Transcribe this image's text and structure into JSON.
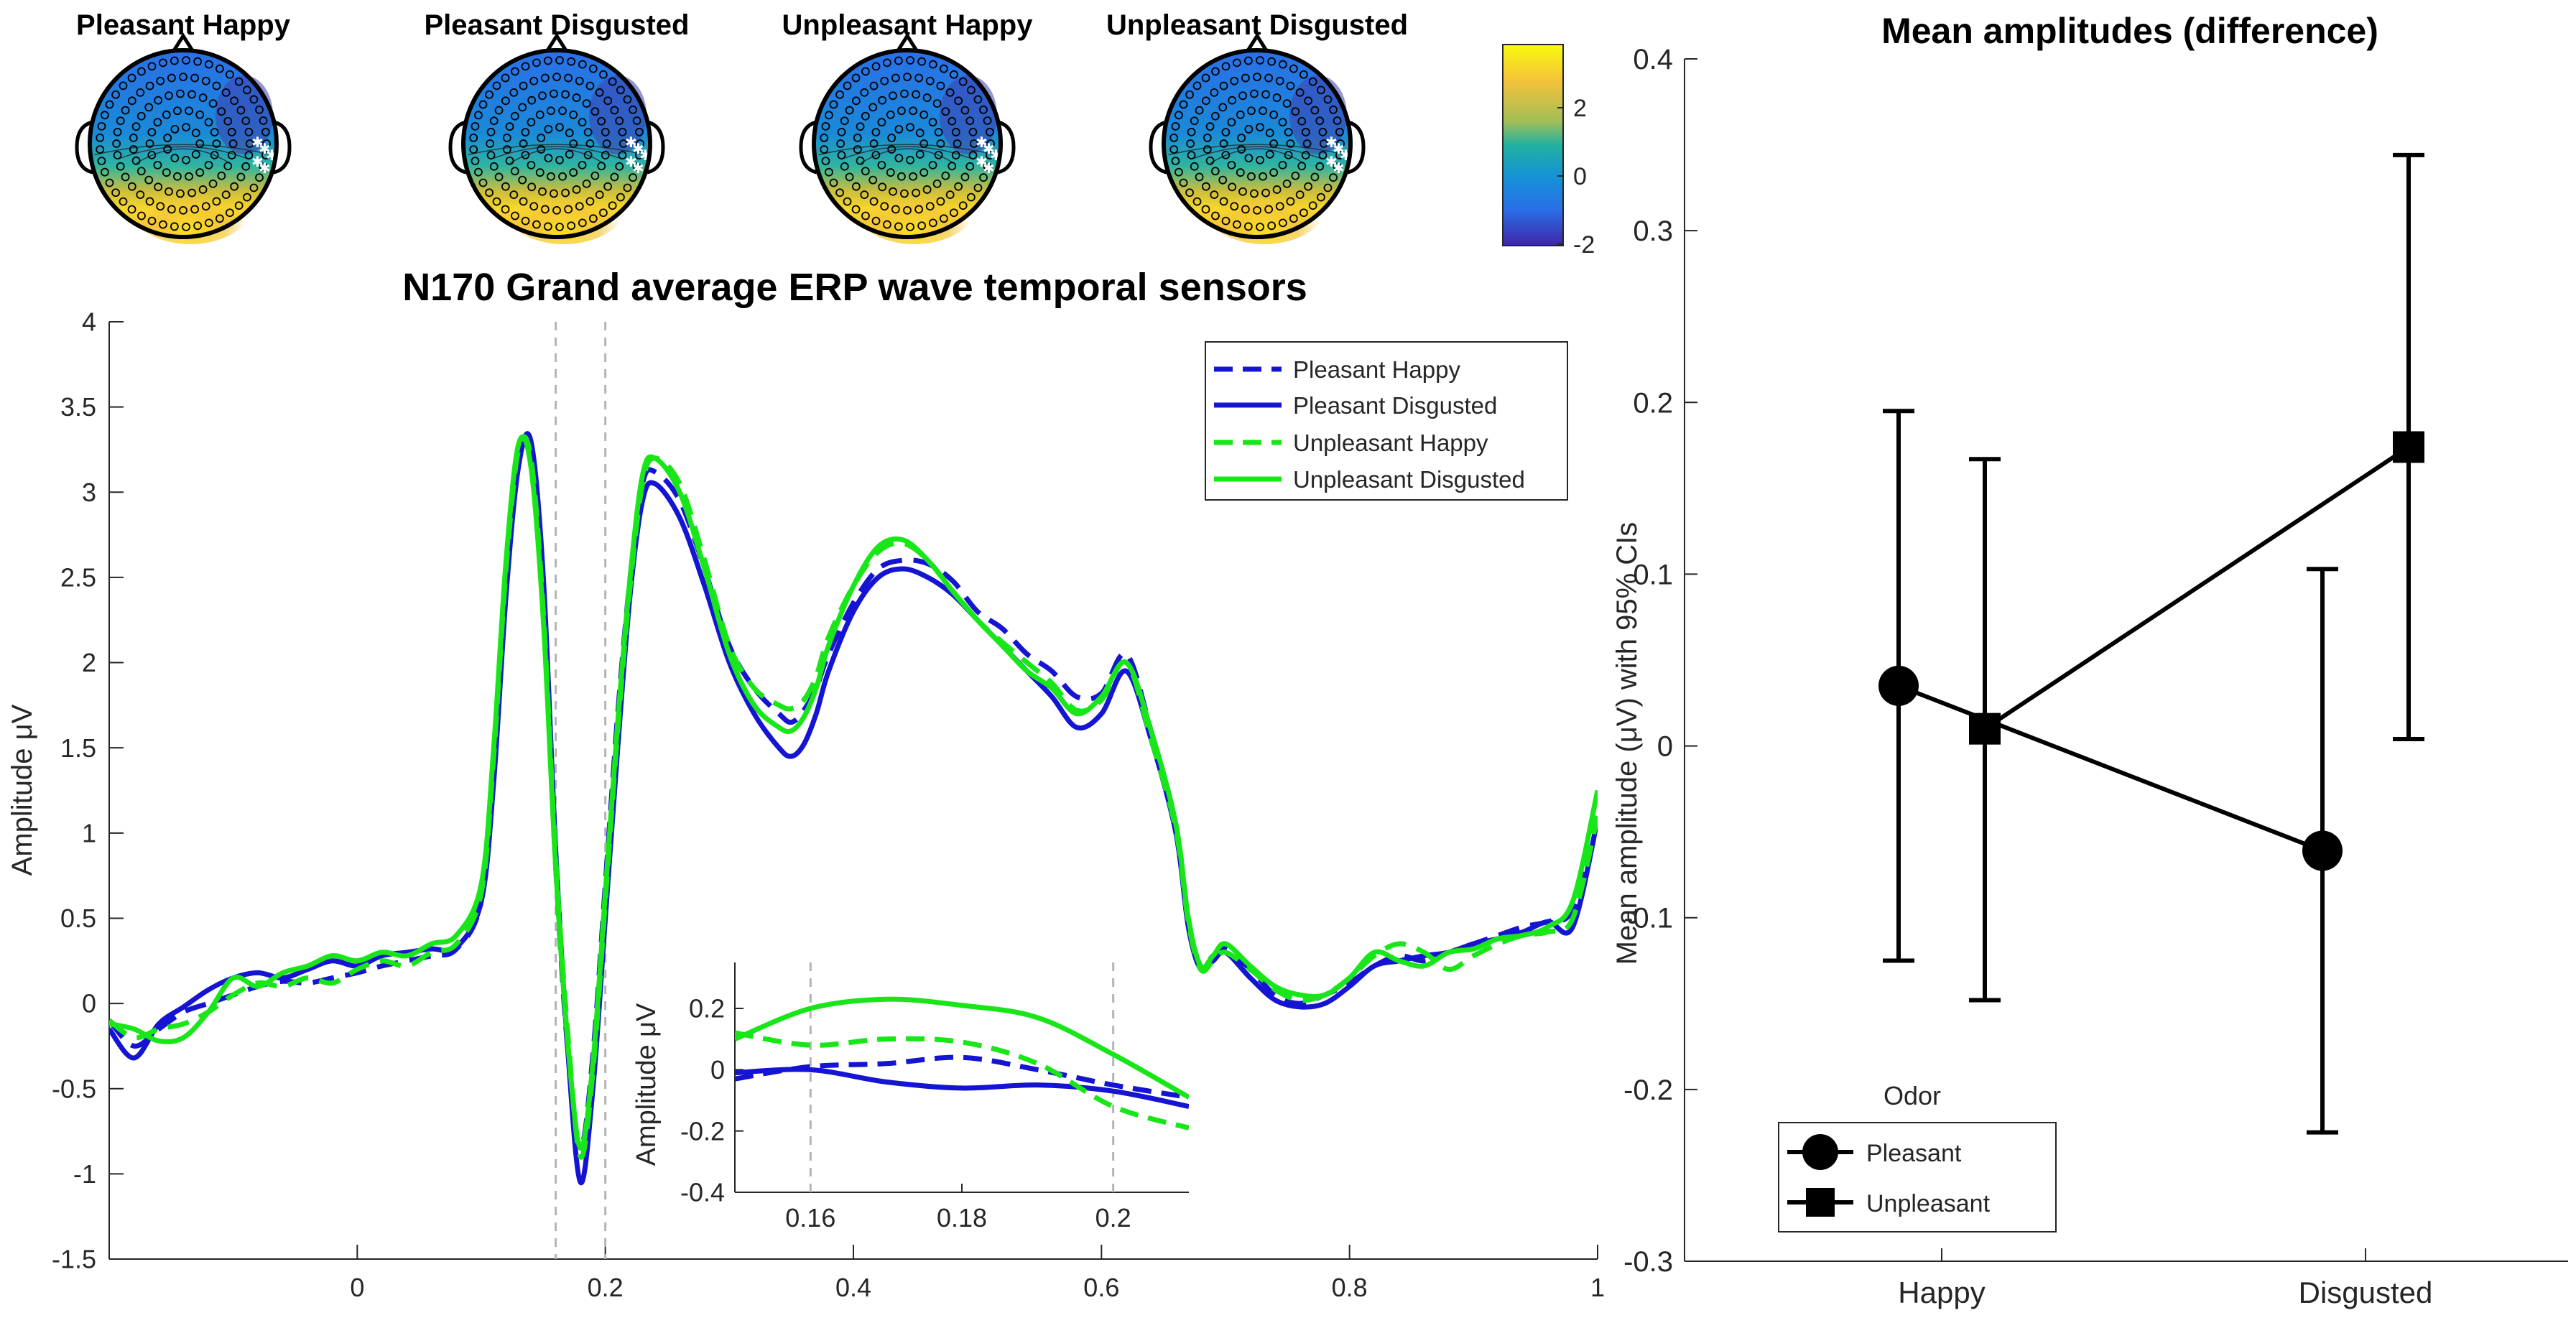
{
  "colors": {
    "pleasant": "#1414d2",
    "unpleasant": "#19e619",
    "cbar_high": "#f9fb0e",
    "cbar_mid": "#22b1a0",
    "cbar_low": "#3e26a8",
    "marker": "#000000",
    "vline": "#b4b4b4"
  },
  "topoplots": {
    "titles": [
      "Pleasant Happy",
      "Pleasant Disgusted",
      "Unpleasant Happy",
      "Unpleasant Disgusted"
    ],
    "colorbar": {
      "ticks": [
        "2",
        "0",
        "-2"
      ],
      "range": [
        -2.2,
        3.5
      ]
    }
  },
  "chart_data": [
    {
      "id": "erp",
      "type": "line",
      "title": "N170 Grand average ERP wave temporal sensors",
      "xlabel": "",
      "ylabel": "Amplitude μV",
      "xlim": [
        -0.2,
        1.0
      ],
      "ylim": [
        -1.5,
        4.0
      ],
      "xticks": [
        "0",
        "0.2",
        "0.4",
        "0.6",
        "0.8",
        "1"
      ],
      "xtick_values": [
        0,
        0.2,
        0.4,
        0.6,
        0.8,
        1.0
      ],
      "yticks": [
        "4",
        "3.5",
        "3",
        "2.5",
        "2",
        "1.5",
        "1",
        "0.5",
        "0",
        "-0.5",
        "-1",
        "-1.5"
      ],
      "ytick_values": [
        4,
        3.5,
        3,
        2.5,
        2,
        1.5,
        1,
        0.5,
        0,
        -0.5,
        -1,
        -1.5
      ],
      "vlines": [
        0.16,
        0.2
      ],
      "legend": [
        "Pleasant Happy",
        "Pleasant Disgusted",
        "Unpleasant Happy",
        "Unpleasant Disgusted"
      ],
      "legend_position": "top-right",
      "series": [
        {
          "name": "Pleasant Happy",
          "color": "pleasant",
          "dash": true,
          "x": [
            -0.2,
            -0.18,
            -0.16,
            -0.14,
            -0.12,
            -0.1,
            -0.08,
            -0.06,
            -0.04,
            -0.02,
            0,
            0.02,
            0.04,
            0.06,
            0.08,
            0.1,
            0.11,
            0.12,
            0.13,
            0.14,
            0.15,
            0.16,
            0.17,
            0.18,
            0.19,
            0.2,
            0.21,
            0.22,
            0.23,
            0.24,
            0.26,
            0.28,
            0.3,
            0.32,
            0.34,
            0.35,
            0.36,
            0.37,
            0.38,
            0.4,
            0.42,
            0.44,
            0.46,
            0.48,
            0.5,
            0.52,
            0.54,
            0.56,
            0.58,
            0.6,
            0.62,
            0.64,
            0.66,
            0.67,
            0.68,
            0.69,
            0.7,
            0.72,
            0.74,
            0.76,
            0.78,
            0.8,
            0.82,
            0.84,
            0.86,
            0.88,
            0.9,
            0.92,
            0.94,
            0.96,
            0.98,
            1.0
          ],
          "y": [
            -0.1,
            -0.25,
            -0.15,
            -0.05,
            0.0,
            0.05,
            0.1,
            0.13,
            0.12,
            0.15,
            0.18,
            0.22,
            0.25,
            0.28,
            0.32,
            0.6,
            1.4,
            2.5,
            3.2,
            3.2,
            2.3,
            0.8,
            -0.3,
            -0.85,
            -0.3,
            0.7,
            1.7,
            2.5,
            3.05,
            3.12,
            2.95,
            2.55,
            2.1,
            1.85,
            1.7,
            1.65,
            1.72,
            1.85,
            2.05,
            2.35,
            2.55,
            2.6,
            2.58,
            2.48,
            2.3,
            2.2,
            2.05,
            1.95,
            1.8,
            1.82,
            2.05,
            1.6,
            1.05,
            0.5,
            0.22,
            0.28,
            0.32,
            0.2,
            0.05,
            0.0,
            0.05,
            0.12,
            0.22,
            0.28,
            0.25,
            0.3,
            0.35,
            0.4,
            0.45,
            0.48,
            0.55,
            1.05
          ]
        },
        {
          "name": "Pleasant Disgusted",
          "color": "pleasant",
          "dash": false,
          "x": [
            -0.2,
            -0.18,
            -0.16,
            -0.14,
            -0.12,
            -0.1,
            -0.08,
            -0.06,
            -0.04,
            -0.02,
            0,
            0.02,
            0.04,
            0.06,
            0.08,
            0.1,
            0.11,
            0.12,
            0.13,
            0.14,
            0.15,
            0.16,
            0.17,
            0.18,
            0.19,
            0.2,
            0.21,
            0.22,
            0.23,
            0.24,
            0.26,
            0.28,
            0.3,
            0.32,
            0.34,
            0.35,
            0.36,
            0.37,
            0.38,
            0.4,
            0.42,
            0.44,
            0.46,
            0.48,
            0.5,
            0.52,
            0.54,
            0.56,
            0.58,
            0.6,
            0.62,
            0.64,
            0.66,
            0.67,
            0.68,
            0.69,
            0.7,
            0.72,
            0.74,
            0.76,
            0.78,
            0.8,
            0.82,
            0.84,
            0.86,
            0.88,
            0.9,
            0.92,
            0.94,
            0.96,
            0.98,
            1.0
          ],
          "y": [
            -0.15,
            -0.32,
            -0.12,
            -0.02,
            0.08,
            0.15,
            0.18,
            0.15,
            0.2,
            0.25,
            0.22,
            0.28,
            0.3,
            0.32,
            0.33,
            0.6,
            1.3,
            2.4,
            3.15,
            3.3,
            2.5,
            0.9,
            -0.3,
            -1.05,
            -0.5,
            0.5,
            1.5,
            2.4,
            2.95,
            3.05,
            2.85,
            2.45,
            2.0,
            1.7,
            1.5,
            1.45,
            1.52,
            1.7,
            1.95,
            2.3,
            2.5,
            2.55,
            2.5,
            2.4,
            2.25,
            2.1,
            1.95,
            1.8,
            1.62,
            1.7,
            1.95,
            1.55,
            1.0,
            0.45,
            0.2,
            0.25,
            0.3,
            0.15,
            0.02,
            -0.02,
            0.0,
            0.1,
            0.22,
            0.25,
            0.28,
            0.3,
            0.35,
            0.38,
            0.42,
            0.48,
            0.45,
            1.08
          ]
        },
        {
          "name": "Unpleasant Happy",
          "color": "unpleasant",
          "dash": true,
          "x": [
            -0.2,
            -0.18,
            -0.16,
            -0.14,
            -0.12,
            -0.1,
            -0.08,
            -0.06,
            -0.04,
            -0.02,
            0,
            0.02,
            0.04,
            0.06,
            0.08,
            0.1,
            0.11,
            0.12,
            0.13,
            0.14,
            0.15,
            0.16,
            0.17,
            0.18,
            0.19,
            0.2,
            0.21,
            0.22,
            0.23,
            0.24,
            0.26,
            0.28,
            0.3,
            0.32,
            0.34,
            0.35,
            0.36,
            0.37,
            0.38,
            0.4,
            0.42,
            0.44,
            0.46,
            0.48,
            0.5,
            0.52,
            0.54,
            0.56,
            0.58,
            0.6,
            0.62,
            0.64,
            0.66,
            0.67,
            0.68,
            0.69,
            0.7,
            0.72,
            0.74,
            0.76,
            0.78,
            0.8,
            0.82,
            0.84,
            0.86,
            0.88,
            0.9,
            0.92,
            0.94,
            0.96,
            0.98,
            1.0
          ],
          "y": [
            -0.1,
            -0.2,
            -0.15,
            -0.12,
            -0.05,
            0.05,
            0.12,
            0.1,
            0.15,
            0.12,
            0.2,
            0.25,
            0.22,
            0.3,
            0.35,
            0.65,
            1.45,
            2.55,
            3.25,
            3.2,
            2.3,
            0.85,
            -0.2,
            -0.9,
            -0.4,
            0.6,
            1.6,
            2.45,
            3.05,
            3.2,
            3.05,
            2.6,
            2.1,
            1.85,
            1.75,
            1.73,
            1.78,
            1.92,
            2.15,
            2.45,
            2.65,
            2.7,
            2.6,
            2.42,
            2.25,
            2.12,
            2.0,
            1.88,
            1.72,
            1.78,
            2.0,
            1.55,
            1.02,
            0.48,
            0.2,
            0.25,
            0.3,
            0.2,
            0.08,
            0.02,
            0.05,
            0.15,
            0.28,
            0.35,
            0.3,
            0.2,
            0.28,
            0.35,
            0.4,
            0.42,
            0.5,
            1.1
          ]
        },
        {
          "name": "Unpleasant Disgusted",
          "color": "unpleasant",
          "dash": false,
          "x": [
            -0.2,
            -0.18,
            -0.16,
            -0.14,
            -0.12,
            -0.1,
            -0.08,
            -0.06,
            -0.04,
            -0.02,
            0,
            0.02,
            0.04,
            0.06,
            0.08,
            0.1,
            0.11,
            0.12,
            0.13,
            0.14,
            0.15,
            0.16,
            0.17,
            0.18,
            0.19,
            0.2,
            0.21,
            0.22,
            0.23,
            0.24,
            0.26,
            0.28,
            0.3,
            0.32,
            0.34,
            0.35,
            0.36,
            0.37,
            0.38,
            0.4,
            0.42,
            0.44,
            0.46,
            0.48,
            0.5,
            0.52,
            0.54,
            0.56,
            0.58,
            0.6,
            0.62,
            0.64,
            0.66,
            0.67,
            0.68,
            0.69,
            0.7,
            0.72,
            0.74,
            0.76,
            0.78,
            0.8,
            0.82,
            0.84,
            0.86,
            0.88,
            0.9,
            0.92,
            0.94,
            0.96,
            0.98,
            1.0
          ],
          "y": [
            -0.12,
            -0.15,
            -0.22,
            -0.2,
            -0.05,
            0.15,
            0.1,
            0.18,
            0.22,
            0.28,
            0.25,
            0.3,
            0.28,
            0.35,
            0.4,
            0.7,
            1.5,
            2.6,
            3.28,
            3.15,
            2.25,
            0.8,
            -0.25,
            -0.85,
            -0.35,
            0.65,
            1.65,
            2.5,
            3.1,
            3.2,
            3.0,
            2.55,
            2.05,
            1.75,
            1.62,
            1.6,
            1.68,
            1.85,
            2.1,
            2.45,
            2.68,
            2.72,
            2.6,
            2.42,
            2.25,
            2.1,
            1.95,
            1.85,
            1.7,
            1.8,
            2.0,
            1.6,
            1.05,
            0.5,
            0.22,
            0.28,
            0.35,
            0.22,
            0.1,
            0.05,
            0.05,
            0.15,
            0.3,
            0.25,
            0.22,
            0.3,
            0.32,
            0.38,
            0.4,
            0.45,
            0.6,
            1.25
          ]
        }
      ]
    },
    {
      "id": "inset",
      "type": "line",
      "title": "",
      "ylabel": "Amplitude μV",
      "xlim": [
        0.15,
        0.21
      ],
      "ylim": [
        -0.4,
        0.35
      ],
      "xticks": [
        "0.16",
        "0.18",
        "0.2"
      ],
      "xtick_values": [
        0.16,
        0.18,
        0.2
      ],
      "yticks": [
        "0.2",
        "0",
        "-0.2",
        "-0.4"
      ],
      "ytick_values": [
        0.2,
        0,
        -0.2,
        -0.4
      ],
      "vlines": [
        0.16,
        0.2
      ],
      "series": [
        {
          "name": "Pleasant Happy",
          "color": "pleasant",
          "dash": true,
          "x": [
            0.15,
            0.16,
            0.17,
            0.18,
            0.19,
            0.2,
            0.21
          ],
          "y": [
            -0.03,
            0.01,
            0.02,
            0.04,
            0.0,
            -0.05,
            -0.09
          ]
        },
        {
          "name": "Pleasant Disgusted",
          "color": "pleasant",
          "dash": false,
          "x": [
            0.15,
            0.16,
            0.17,
            0.18,
            0.19,
            0.2,
            0.21
          ],
          "y": [
            -0.01,
            0.0,
            -0.04,
            -0.06,
            -0.05,
            -0.07,
            -0.12
          ]
        },
        {
          "name": "Unpleasant Happy",
          "color": "unpleasant",
          "dash": true,
          "x": [
            0.15,
            0.16,
            0.17,
            0.18,
            0.19,
            0.2,
            0.21
          ],
          "y": [
            0.12,
            0.08,
            0.1,
            0.09,
            0.02,
            -0.12,
            -0.19
          ]
        },
        {
          "name": "Unpleasant Disgusted",
          "color": "unpleasant",
          "dash": false,
          "x": [
            0.15,
            0.16,
            0.17,
            0.18,
            0.19,
            0.2,
            0.21
          ],
          "y": [
            0.1,
            0.2,
            0.23,
            0.21,
            0.17,
            0.05,
            -0.09
          ]
        }
      ]
    },
    {
      "id": "means",
      "type": "scatter",
      "title": "Mean amplitudes (difference)",
      "xlabel": "",
      "ylabel": "Mean amplitude (μV) with 95% CIs",
      "categories": [
        "Happy",
        "Disgusted"
      ],
      "ylim": [
        -0.3,
        0.4
      ],
      "yticks": [
        "0.4",
        "0.3",
        "0.2",
        "0.1",
        "0",
        "-0.1",
        "-0.2",
        "-0.3"
      ],
      "ytick_values": [
        0.4,
        0.3,
        0.2,
        0.1,
        0,
        -0.1,
        -0.2,
        -0.3
      ],
      "legend_title": "Odor",
      "legend": [
        "Pleasant",
        "Unpleasant"
      ],
      "legend_position": "bottom-left",
      "series": [
        {
          "name": "Pleasant",
          "marker": "circle",
          "offset": -0.08,
          "values": [
            0.035,
            -0.061
          ],
          "ci_low": [
            -0.125,
            -0.225
          ],
          "ci_high": [
            0.195,
            0.103
          ]
        },
        {
          "name": "Unpleasant",
          "marker": "square",
          "offset": 0.08,
          "values": [
            0.01,
            0.174
          ],
          "ci_low": [
            -0.148,
            0.004
          ],
          "ci_high": [
            0.167,
            0.344
          ]
        }
      ]
    }
  ]
}
